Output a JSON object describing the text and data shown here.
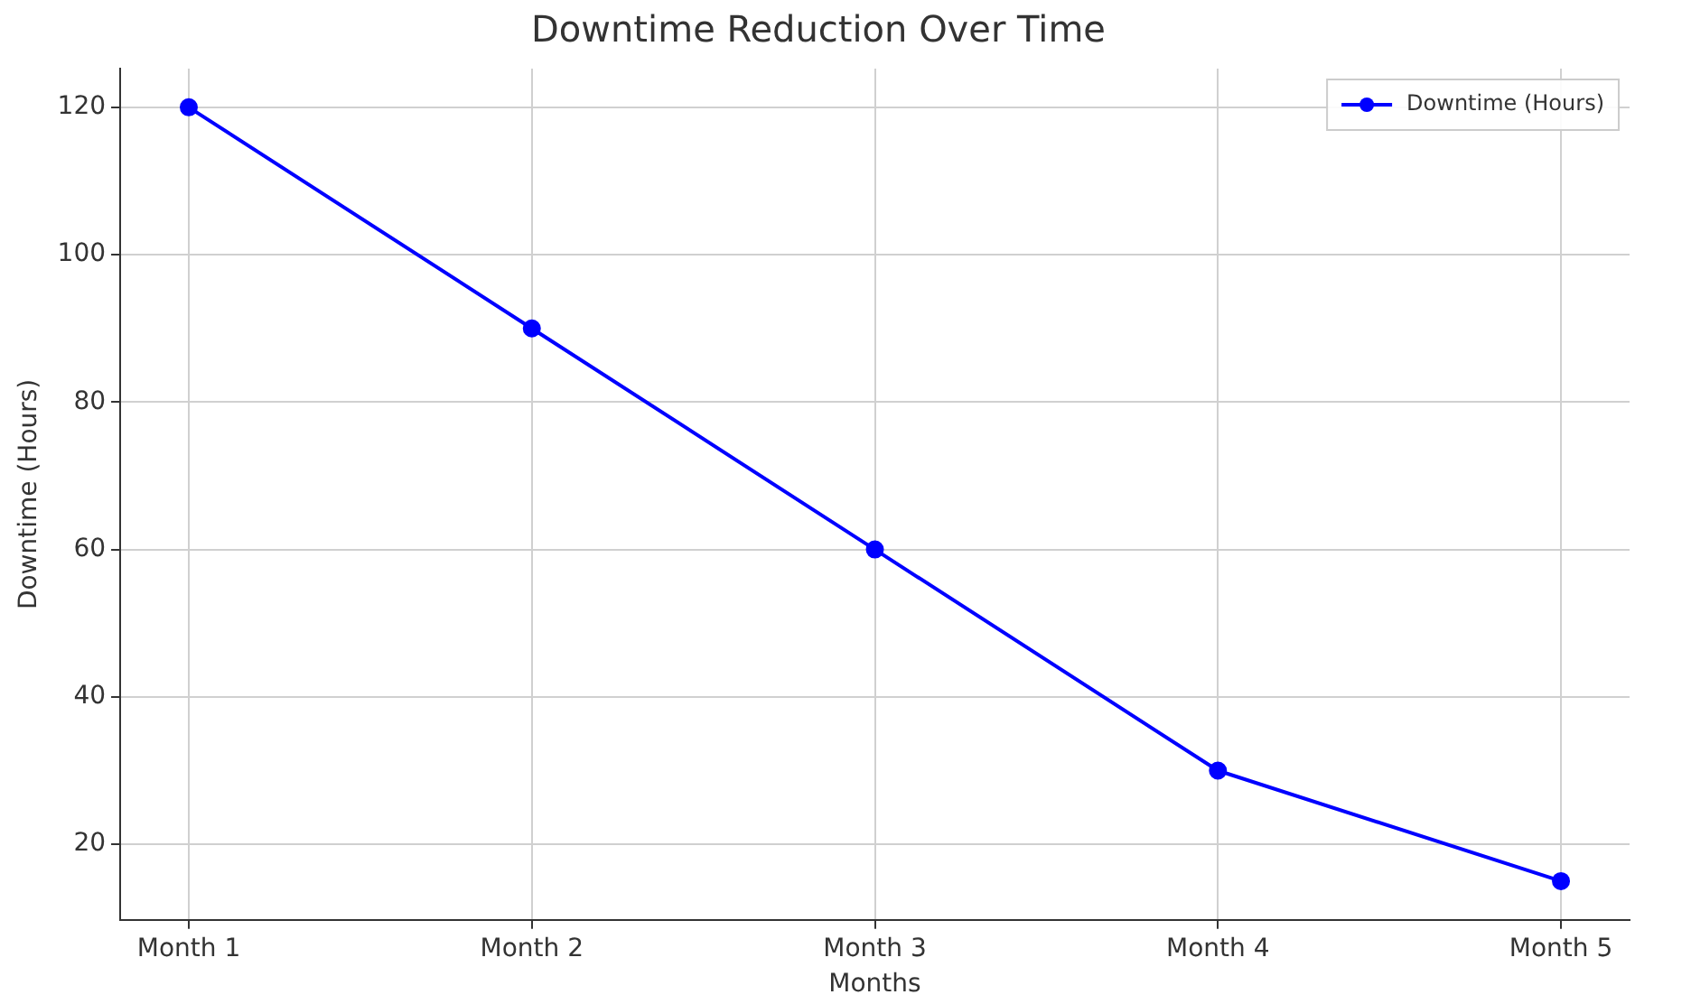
{
  "chart_data": {
    "type": "line",
    "title": "Downtime Reduction Over Time",
    "xlabel": "Months",
    "ylabel": "Downtime (Hours)",
    "categories": [
      "Month 1",
      "Month 2",
      "Month 3",
      "Month 4",
      "Month 5"
    ],
    "series": [
      {
        "name": "Downtime (Hours)",
        "color": "#0000ff",
        "values": [
          120,
          90,
          60,
          30,
          15
        ]
      }
    ],
    "ylim": [
      9.75,
      125.25
    ],
    "yticks": [
      20,
      40,
      60,
      80,
      100,
      120
    ],
    "grid": true,
    "legend": "top right",
    "marker": "circle",
    "line_style": "solid"
  }
}
